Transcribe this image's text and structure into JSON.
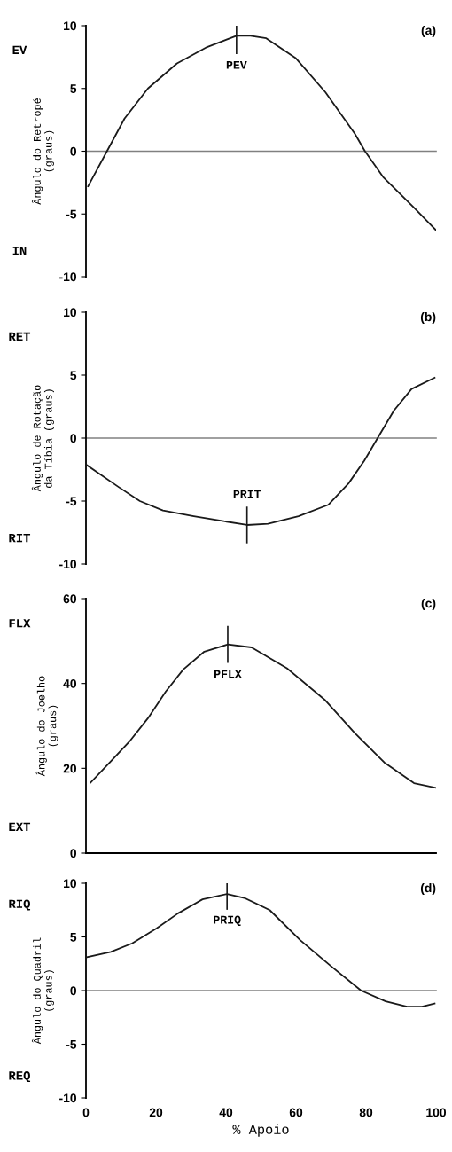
{
  "chart_data": [
    {
      "type": "line",
      "title": "(a)",
      "ylabel": "Ângulo do Retropé\n(graus)",
      "xlim": [
        0,
        100
      ],
      "ylim": [
        -10,
        10
      ],
      "yticks": [
        -10,
        -5,
        0,
        5,
        10
      ],
      "tick_labels": "y",
      "grid": false,
      "marker": "none",
      "line_style": "solid",
      "annotations": [
        "EV",
        "IN",
        {
          "text": "PEV",
          "x": 43,
          "y": 9.2
        }
      ],
      "ref_lines": [
        {
          "axis": "y",
          "value": 0,
          "color": "#808080"
        }
      ],
      "series": [
        {
          "color": "#1a1a1a",
          "x": [
            0.6,
            6,
            11,
            17.7,
            26,
            34.6,
            43,
            47,
            51.5,
            60,
            68.4,
            76.8,
            79.7,
            85,
            93.7,
            100
          ],
          "values": [
            -2.8,
            0,
            2.6,
            5.0,
            7.0,
            8.3,
            9.2,
            9.2,
            9.0,
            7.4,
            4.7,
            1.4,
            0,
            -2.1,
            -4.5,
            -6.3
          ]
        }
      ]
    },
    {
      "type": "line",
      "title": "(b)",
      "ylabel": "Ângulo de Rotação\nda Tíbia (graus)",
      "xlim": [
        0,
        100
      ],
      "ylim": [
        -10,
        10
      ],
      "yticks": [
        -10,
        -5,
        0,
        5,
        10
      ],
      "tick_labels": "y",
      "grid": false,
      "marker": "none",
      "line_style": "solid",
      "annotations": [
        "RET",
        "RIT",
        {
          "text": "PRIT",
          "x": 46,
          "y": -6.9
        }
      ],
      "ref_lines": [
        {
          "axis": "y",
          "value": 0,
          "color": "#808080"
        }
      ],
      "series": [
        {
          "color": "#1a1a1a",
          "x": [
            0,
            9.4,
            15.4,
            22,
            30.8,
            39.3,
            46,
            52,
            60.7,
            69.2,
            75,
            79.5,
            83.3,
            88,
            93,
            99.6
          ],
          "values": [
            -2.1,
            -3.9,
            -5.0,
            -5.75,
            -6.2,
            -6.6,
            -6.9,
            -6.8,
            -6.2,
            -5.3,
            -3.6,
            -1.8,
            0,
            2.2,
            3.9,
            4.8
          ]
        }
      ]
    },
    {
      "type": "line",
      "title": "(c)",
      "ylabel": "Ângulo do Joelho\n(graus)",
      "xlim": [
        0,
        100
      ],
      "ylim": [
        0,
        60
      ],
      "yticks": [
        0,
        20,
        40,
        60
      ],
      "tick_labels": "y",
      "grid": false,
      "marker": "none",
      "line_style": "solid",
      "annotations": [
        "FLX",
        "EXT",
        {
          "text": "PFLX",
          "x": 40.5,
          "y": 49.2
        }
      ],
      "series": [
        {
          "color": "#1a1a1a",
          "x": [
            1.3,
            7.6,
            12.7,
            17.7,
            22.8,
            27.8,
            33.8,
            40.5,
            47.3,
            57.4,
            68.4,
            76.8,
            85.2,
            93.7,
            100
          ],
          "values": [
            16.6,
            22.1,
            26.6,
            31.8,
            38.1,
            43.3,
            47.5,
            49.2,
            48.5,
            43.6,
            36.0,
            28.3,
            21.4,
            16.5,
            15.4
          ]
        }
      ]
    },
    {
      "type": "line",
      "title": "(d)",
      "xlabel": "% Apoio",
      "ylabel": "Ângulo do Quadril\n(graus)",
      "xlim": [
        0,
        100
      ],
      "xticks": [
        0,
        20,
        40,
        60,
        80,
        100
      ],
      "ylim": [
        -10,
        10
      ],
      "yticks": [
        -10,
        -5,
        0,
        5,
        10
      ],
      "grid": false,
      "marker": "none",
      "line_style": "solid",
      "annotations": [
        "RIQ",
        "REQ",
        {
          "text": "PRIQ",
          "x": 40.3,
          "y": 9.0
        }
      ],
      "ref_lines": [
        {
          "axis": "y",
          "value": 0,
          "color": "#808080"
        }
      ],
      "series": [
        {
          "color": "#1a1a1a",
          "x": [
            0.2,
            7.1,
            13.2,
            20.2,
            26.3,
            33.3,
            40.3,
            45.5,
            52.5,
            61.2,
            69.9,
            78.6,
            85.6,
            91.7,
            96,
            99.6
          ],
          "values": [
            3.1,
            3.6,
            4.4,
            5.8,
            7.2,
            8.5,
            9.0,
            8.6,
            7.5,
            4.7,
            2.3,
            0,
            -1.0,
            -1.5,
            -1.5,
            -1.2
          ]
        }
      ]
    }
  ]
}
